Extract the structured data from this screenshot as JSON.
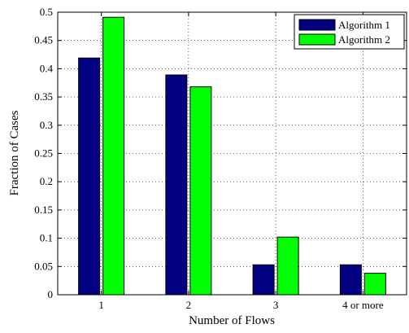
{
  "chart_data": {
    "type": "bar",
    "title": "",
    "xlabel": "Number of Flows",
    "ylabel": "Fraction of Cases",
    "categories": [
      "1",
      "2",
      "3",
      "4 or more"
    ],
    "series": [
      {
        "name": "Algorithm 1",
        "values": [
          0.419,
          0.389,
          0.053,
          0.053
        ],
        "color": "#000080"
      },
      {
        "name": "Algorithm 2",
        "values": [
          0.491,
          0.368,
          0.102,
          0.038
        ],
        "color": "#00ff00"
      }
    ],
    "ylim": [
      0,
      0.5
    ],
    "yticks": [
      "0",
      "0.05",
      "0.1",
      "0.15",
      "0.2",
      "0.25",
      "0.3",
      "0.35",
      "0.4",
      "0.45",
      "0.5"
    ],
    "ytick_values": [
      0,
      0.05,
      0.1,
      0.15,
      0.2,
      0.25,
      0.3,
      0.35,
      0.4,
      0.45,
      0.5
    ],
    "grid": true,
    "legend_position": "top-right"
  }
}
